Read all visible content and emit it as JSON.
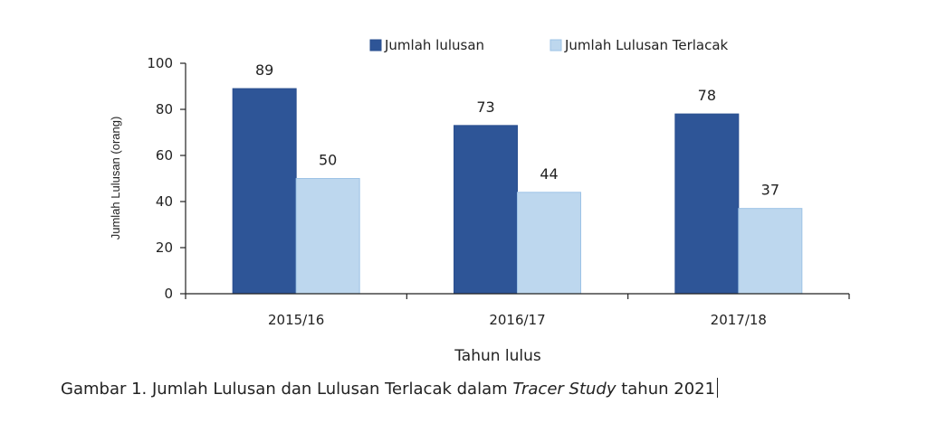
{
  "chart_data": {
    "type": "bar",
    "categories": [
      "2015/16",
      "2016/17",
      "2017/18"
    ],
    "series": [
      {
        "name": "Jumlah lulusan",
        "values": [
          89,
          73,
          78
        ],
        "color": "#2e5597"
      },
      {
        "name": "Jumlah Lulusan Terlacak",
        "values": [
          50,
          44,
          37
        ],
        "color": "#bdd7ee"
      }
    ],
    "xlabel": "Tahun lulus",
    "ylabel": "Jumlah Lulusan (orang)",
    "ylim": [
      0,
      100
    ],
    "yticks": [
      0,
      20,
      40,
      60,
      80,
      100
    ],
    "grid": false,
    "legend_position": "top-right"
  },
  "caption": {
    "prefix": "Gambar 1. Jumlah Lulusan dan Lulusan Terlacak dalam ",
    "emphasis": "Tracer Study",
    "suffix": " tahun 2021"
  }
}
